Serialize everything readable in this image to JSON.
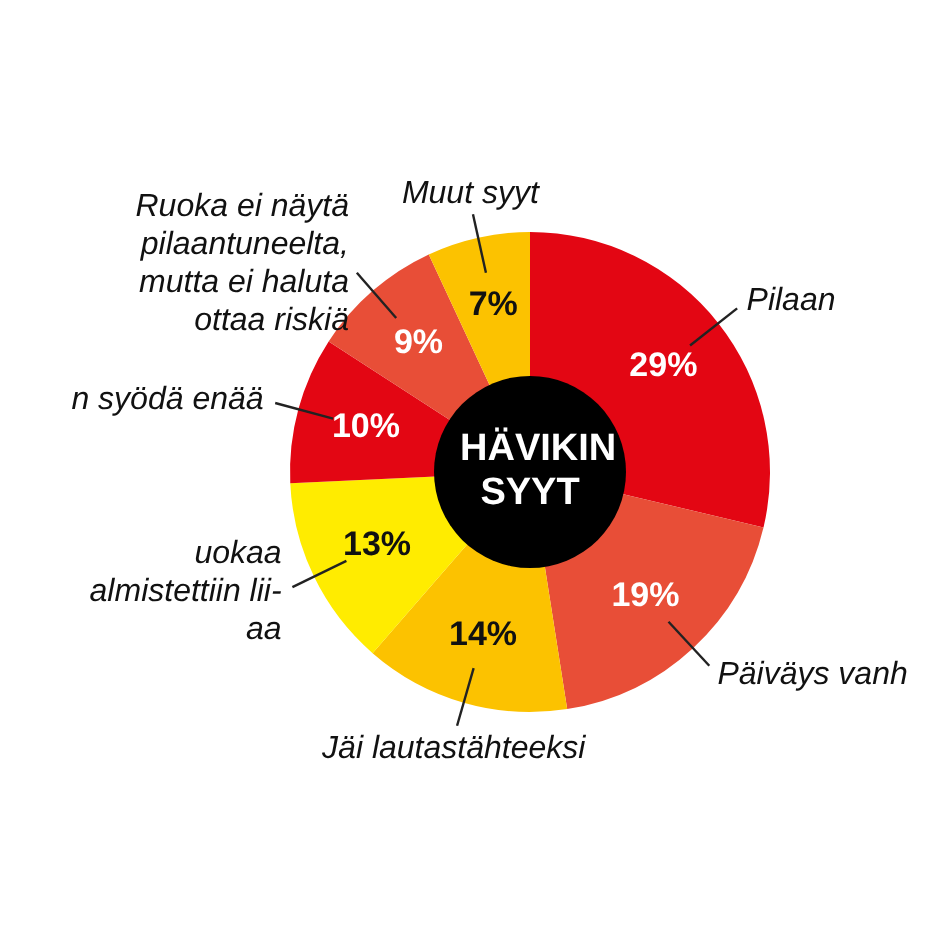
{
  "chart_data": {
    "type": "donut",
    "title": "HÄVIKIN SYYT",
    "categories": [
      "Pilaan",
      "Päiväys vanh",
      "Jäi lautastähteeksi",
      "uokaa\nalmistettiin lii-\naa",
      "n syödä enää",
      "Ruoka ei näytä\npilaantuneelta,\nmutta ei haluta\nottaa riskiä",
      "Muut syyt"
    ],
    "values": [
      29,
      19,
      14,
      13,
      10,
      9,
      7
    ],
    "value_labels": [
      "29%",
      "19%",
      "14%",
      "13%",
      "10%",
      "9%",
      "7%"
    ],
    "colors": [
      "#e30613",
      "#e84e37",
      "#fcc200",
      "#ffec00",
      "#e30613",
      "#e84e37",
      "#fcc200"
    ],
    "legend": false
  }
}
